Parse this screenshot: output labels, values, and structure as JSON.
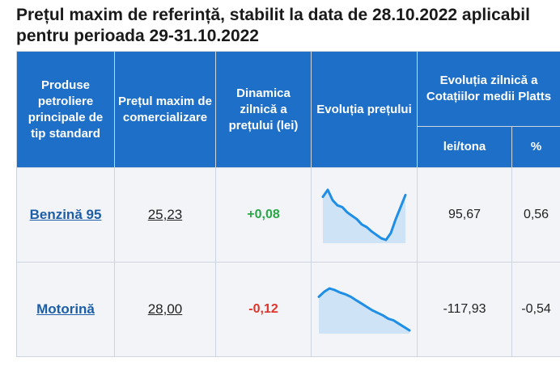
{
  "title": "Prețul maxim de referință, stabilit la data de 28.10.2022 aplicabil pentru perioada 29-31.10.2022",
  "headers": {
    "product": "Produse petroliere principale de tip standard",
    "max_price": "Prețul maxim de comercializare",
    "dynamic": "Dinamica zilnică a prețului (lei)",
    "evolution": "Evoluția prețului",
    "platts": "Evoluția zilnică a Cotațiilor medii Platts",
    "lei_tona": "lei/tona",
    "percent": "%"
  },
  "rows": [
    {
      "product": "Benzină 95",
      "max_price": "25,23",
      "dynamic": "+0,08",
      "lei_tona": "95,67",
      "percent": "0,56",
      "trend_color": "#1e8ee6",
      "sparkline": [
        62,
        70,
        58,
        52,
        50,
        44,
        40,
        36,
        30,
        27,
        22,
        18,
        14,
        12,
        20,
        36,
        50,
        64
      ]
    },
    {
      "product": "Motorină",
      "max_price": "28,00",
      "dynamic": "-0,12",
      "lei_tona": "-117,93",
      "percent": "-0,54",
      "trend_color": "#1e8ee6",
      "sparkline": [
        52,
        58,
        62,
        60,
        57,
        55,
        52,
        48,
        44,
        40,
        36,
        33,
        30,
        26,
        24,
        20,
        16,
        12
      ]
    }
  ]
}
